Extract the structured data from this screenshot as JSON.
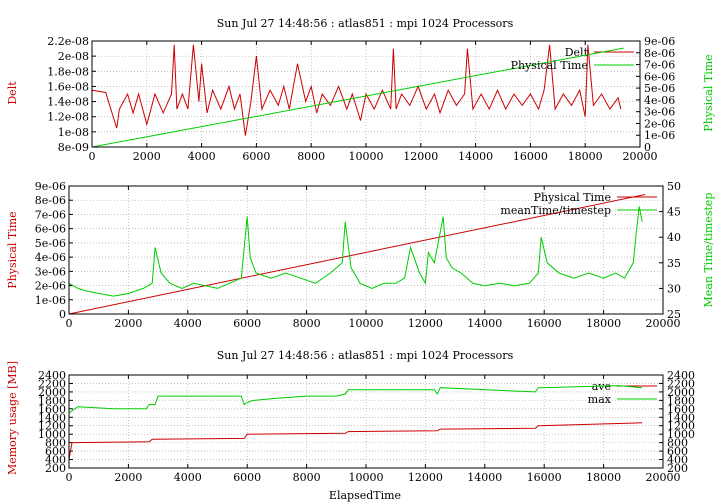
{
  "chart_data": [
    {
      "type": "line",
      "title": "Sun Jul 27 14:48:56 : atlas851 : mpi 1024 Processors",
      "xlabel": "",
      "ylabel": "Delt",
      "y2label": "Physical Time",
      "xlim": [
        0,
        20000
      ],
      "ylim": [
        8e-09,
        2.2e-08
      ],
      "y2lim": [
        0,
        9e-06
      ],
      "xticks": [
        "0",
        "2000",
        "4000",
        "6000",
        "8000",
        "10000",
        "12000",
        "14000",
        "16000",
        "18000",
        "20000"
      ],
      "yticks": [
        "8e-09",
        "1e-08",
        "1.2e-08",
        "1.4e-08",
        "1.6e-08",
        "1.8e-08",
        "2e-08",
        "2.2e-08"
      ],
      "y2ticks": [
        "0",
        "1e-06",
        "2e-06",
        "3e-06",
        "4e-06",
        "5e-06",
        "6e-06",
        "7e-06",
        "8e-06",
        "9e-06"
      ],
      "grid": true,
      "legend_position": "top-right",
      "series": [
        {
          "name": "Delt",
          "axis": "y",
          "color": "#cc0000",
          "x": [
            0,
            500,
            900,
            1000,
            1300,
            1500,
            1700,
            2000,
            2300,
            2600,
            2900,
            3000,
            3100,
            3300,
            3500,
            3700,
            3900,
            4000,
            4200,
            4400,
            4700,
            5000,
            5200,
            5400,
            5600,
            5800,
            6000,
            6200,
            6500,
            6800,
            7000,
            7200,
            7500,
            7800,
            8000,
            8200,
            8400,
            8700,
            9000,
            9300,
            9500,
            9800,
            10000,
            10300,
            10600,
            10900,
            11000,
            11100,
            11300,
            11600,
            11900,
            12200,
            12500,
            12700,
            13000,
            13300,
            13600,
            13700,
            13900,
            14200,
            14500,
            14800,
            15100,
            15400,
            15700,
            16000,
            16300,
            16500,
            16700,
            16900,
            17200,
            17500,
            17800,
            18000,
            18100,
            18300,
            18600,
            18900,
            19200,
            19300
          ],
          "values": [
            1.55e-08,
            1.52e-08,
            1.05e-08,
            1.3e-08,
            1.5e-08,
            1.25e-08,
            1.5e-08,
            1.1e-08,
            1.5e-08,
            1.25e-08,
            1.5e-08,
            2.15e-08,
            1.3e-08,
            1.5e-08,
            1.3e-08,
            2.15e-08,
            1.4e-08,
            1.9e-08,
            1.25e-08,
            1.55e-08,
            1.3e-08,
            1.6e-08,
            1.3e-08,
            1.5e-08,
            9.5e-09,
            1.4e-08,
            2e-08,
            1.3e-08,
            1.55e-08,
            1.35e-08,
            1.6e-08,
            1.3e-08,
            1.9e-08,
            1.4e-08,
            1.6e-08,
            1.25e-08,
            1.5e-08,
            1.35e-08,
            1.6e-08,
            1.3e-08,
            1.5e-08,
            1.15e-08,
            1.5e-08,
            1.3e-08,
            1.55e-08,
            1.3e-08,
            2.1e-08,
            1.3e-08,
            1.5e-08,
            1.35e-08,
            1.6e-08,
            1.3e-08,
            1.5e-08,
            1.25e-08,
            1.55e-08,
            1.35e-08,
            1.5e-08,
            2.1e-08,
            1.3e-08,
            1.5e-08,
            1.3e-08,
            1.55e-08,
            1.3e-08,
            1.5e-08,
            1.35e-08,
            1.5e-08,
            1.3e-08,
            1.55e-08,
            2.15e-08,
            1.3e-08,
            1.5e-08,
            1.35e-08,
            1.55e-08,
            1.2e-08,
            2.15e-08,
            1.35e-08,
            1.5e-08,
            1.3e-08,
            1.45e-08,
            1.3e-08
          ]
        },
        {
          "name": "Physical Time",
          "axis": "y2",
          "color": "#00cc00",
          "x": [
            0,
            19400
          ],
          "values": [
            0,
            8.4e-06
          ]
        }
      ]
    },
    {
      "type": "line",
      "title": "",
      "xlabel": "",
      "ylabel": "Physical Time",
      "y2label": "Mean Time/timestep",
      "xlim": [
        0,
        20000
      ],
      "ylim": [
        0,
        9e-06
      ],
      "y2lim": [
        25,
        50
      ],
      "xticks": [
        "0",
        "2000",
        "4000",
        "6000",
        "8000",
        "10000",
        "12000",
        "14000",
        "16000",
        "18000",
        "20000"
      ],
      "yticks": [
        "0",
        "1e-06",
        "2e-06",
        "3e-06",
        "4e-06",
        "5e-06",
        "6e-06",
        "7e-06",
        "8e-06",
        "9e-06"
      ],
      "y2ticks": [
        "25",
        "30",
        "35",
        "40",
        "45",
        "50"
      ],
      "grid": true,
      "legend_position": "top-right",
      "series": [
        {
          "name": "Physical Time",
          "axis": "y",
          "color": "#cc0000",
          "x": [
            0,
            19400
          ],
          "values": [
            0,
            8.4e-06
          ]
        },
        {
          "name": "meanTime/timestep",
          "axis": "y2",
          "color": "#00cc00",
          "x": [
            0,
            300,
            600,
            1000,
            1500,
            2000,
            2500,
            2800,
            2900,
            3100,
            3400,
            3800,
            4200,
            4600,
            5000,
            5400,
            5800,
            6000,
            6100,
            6300,
            6800,
            7300,
            7800,
            8300,
            8800,
            9200,
            9300,
            9500,
            9800,
            10200,
            10600,
            11000,
            11300,
            11500,
            11800,
            12000,
            12100,
            12300,
            12600,
            12700,
            12900,
            13200,
            13600,
            14000,
            14500,
            15000,
            15500,
            15800,
            15900,
            16100,
            16500,
            17000,
            17500,
            18000,
            18400,
            18700,
            19000,
            19100,
            19200,
            19300
          ],
          "values": [
            31,
            30,
            29.5,
            29,
            28.5,
            29,
            30,
            31,
            38,
            33,
            31,
            30,
            31,
            30.5,
            30,
            31,
            32,
            44,
            36,
            33,
            32,
            33,
            32,
            31,
            33,
            35,
            43,
            34,
            31,
            30,
            31,
            31,
            32,
            38,
            33,
            31,
            37,
            35,
            44,
            36,
            34,
            33,
            31,
            30.5,
            31,
            30.5,
            31,
            33,
            40,
            35,
            33,
            32,
            33,
            32,
            33,
            32,
            35,
            41,
            46,
            43
          ]
        }
      ]
    },
    {
      "type": "line",
      "title": "Sun Jul 27 14:48:56 : atlas851 : mpi 1024 Processors",
      "xlabel": "ElapsedTime",
      "ylabel": "Memory usage [MB]",
      "xlim": [
        0,
        20000
      ],
      "ylim": [
        200,
        2400
      ],
      "y2lim": [
        200,
        2400
      ],
      "xticks": [
        "0",
        "2000",
        "4000",
        "6000",
        "8000",
        "10000",
        "12000",
        "14000",
        "16000",
        "18000",
        "20000"
      ],
      "yticks": [
        "200",
        "400",
        "600",
        "800",
        "1000",
        "1200",
        "1400",
        "1600",
        "1800",
        "2000",
        "2200",
        "2400"
      ],
      "y2ticks": [
        "200",
        "400",
        "600",
        "800",
        "1000",
        "1200",
        "1400",
        "1600",
        "1800",
        "2000",
        "2200",
        "2400"
      ],
      "grid": true,
      "legend_position": "top-right",
      "series": [
        {
          "name": "ave",
          "axis": "y",
          "color": "#cc0000",
          "x": [
            0,
            100,
            2700,
            2800,
            5900,
            6000,
            9300,
            9400,
            12400,
            12500,
            15700,
            15800,
            19300
          ],
          "values": [
            400,
            800,
            820,
            880,
            900,
            1000,
            1020,
            1060,
            1080,
            1120,
            1140,
            1200,
            1270
          ]
        },
        {
          "name": "max",
          "axis": "y",
          "color": "#00cc00",
          "x": [
            0,
            200,
            300,
            1500,
            2600,
            2700,
            2900,
            3000,
            5800,
            5900,
            6000,
            6200,
            7000,
            8000,
            9000,
            9300,
            9400,
            12300,
            12400,
            12500,
            15700,
            15800,
            15900,
            18500,
            19300
          ],
          "values": [
            1500,
            1600,
            1650,
            1600,
            1600,
            1700,
            1700,
            1900,
            1900,
            1700,
            1750,
            1800,
            1850,
            1900,
            1900,
            1950,
            2050,
            2050,
            1950,
            2100,
            2000,
            2100,
            2100,
            2150,
            2100
          ]
        }
      ]
    }
  ]
}
